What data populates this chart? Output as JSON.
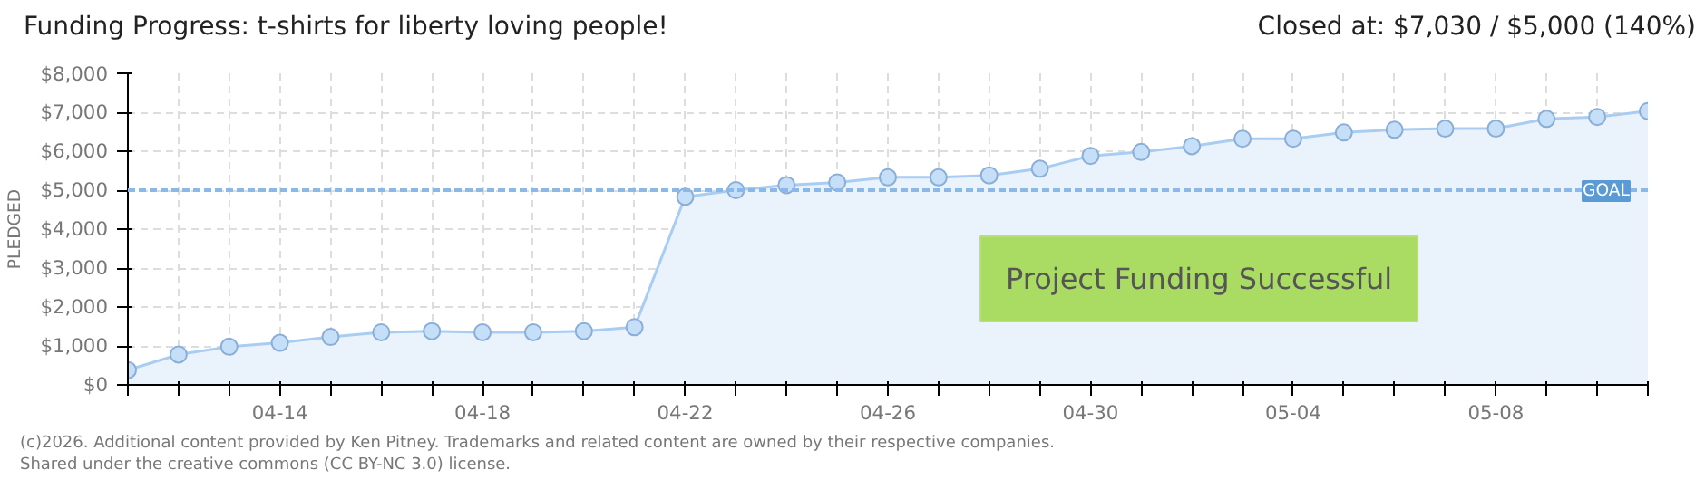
{
  "chart_data": {
    "type": "area",
    "title": "Funding Progress: t-shirts for liberty loving people!",
    "subtitle": "Closed at:  $7,030 /  $5,000 (140%)",
    "ylabel": "PLEDGED",
    "x": [
      "2026-04-11",
      "2026-04-12",
      "2026-04-13",
      "2026-04-14",
      "2026-04-15",
      "2026-04-16",
      "2026-04-17",
      "2026-04-18",
      "2026-04-19",
      "2026-04-20",
      "2026-04-21",
      "2026-04-22",
      "2026-04-23",
      "2026-04-24",
      "2026-04-25",
      "2026-04-26",
      "2026-04-27",
      "2026-04-28",
      "2026-04-29",
      "2026-04-30",
      "2026-05-01",
      "2026-05-02",
      "2026-05-03",
      "2026-05-04",
      "2026-05-05",
      "2026-05-06",
      "2026-05-07",
      "2026-05-08",
      "2026-05-09",
      "2026-05-10",
      "2026-05-11"
    ],
    "series": [
      {
        "color": "#a9cdf2",
        "values": [
          380,
          780,
          980,
          1080,
          1230,
          1350,
          1380,
          1350,
          1350,
          1380,
          1480,
          4830,
          5000,
          5130,
          5200,
          5330,
          5330,
          5380,
          5550,
          5880,
          5980,
          6130,
          6320,
          6320,
          6480,
          6550,
          6580,
          6580,
          6830,
          6880,
          7030
        ]
      }
    ],
    "xlim": [
      "2026-04-11",
      "2026-05-11"
    ],
    "xticks": [
      {
        "value": "2026-04-11",
        "label": null
      },
      {
        "value": "2026-04-12",
        "label": null
      },
      {
        "value": "2026-04-13",
        "label": null
      },
      {
        "value": "2026-04-14",
        "label": "04-14"
      },
      {
        "value": "2026-04-15",
        "label": null
      },
      {
        "value": "2026-04-16",
        "label": null
      },
      {
        "value": "2026-04-17",
        "label": null
      },
      {
        "value": "2026-04-18",
        "label": "04-18"
      },
      {
        "value": "2026-04-19",
        "label": null
      },
      {
        "value": "2026-04-20",
        "label": null
      },
      {
        "value": "2026-04-21",
        "label": null
      },
      {
        "value": "2026-04-22",
        "label": "04-22"
      },
      {
        "value": "2026-04-23",
        "label": null
      },
      {
        "value": "2026-04-24",
        "label": null
      },
      {
        "value": "2026-04-25",
        "label": null
      },
      {
        "value": "2026-04-26",
        "label": "04-26"
      },
      {
        "value": "2026-04-27",
        "label": null
      },
      {
        "value": "2026-04-28",
        "label": null
      },
      {
        "value": "2026-04-29",
        "label": null
      },
      {
        "value": "2026-04-30",
        "label": "04-30"
      },
      {
        "value": "2026-05-01",
        "label": null
      },
      {
        "value": "2026-05-02",
        "label": null
      },
      {
        "value": "2026-05-03",
        "label": null
      },
      {
        "value": "2026-05-04",
        "label": "05-04"
      },
      {
        "value": "2026-05-05",
        "label": null
      },
      {
        "value": "2026-05-06",
        "label": null
      },
      {
        "value": "2026-05-07",
        "label": null
      },
      {
        "value": "2026-05-08",
        "label": "05-08"
      },
      {
        "value": "2026-05-09",
        "label": null
      },
      {
        "value": "2026-05-10",
        "label": null
      },
      {
        "value": "2026-05-11",
        "label": null
      }
    ],
    "ylim": [
      0,
      8000
    ],
    "yticks": [
      {
        "value": 0,
        "label": "$0"
      },
      {
        "value": 1000,
        "label": "$1,000"
      },
      {
        "value": 2000,
        "label": "$2,000"
      },
      {
        "value": 3000,
        "label": "$3,000"
      },
      {
        "value": 4000,
        "label": "$4,000"
      },
      {
        "value": 5000,
        "label": "$5,000"
      },
      {
        "value": 6000,
        "label": "$6,000"
      },
      {
        "value": 7000,
        "label": "$7,000"
      },
      {
        "value": 8000,
        "label": "$8,000"
      }
    ],
    "ref_lines": [
      {
        "axis": "y",
        "value": 5000,
        "label": "GOAL",
        "color": "#8ab8e8",
        "line_style": "dotted"
      }
    ],
    "grid": true,
    "marker": "circle",
    "annotations": [
      "Project Funding Successful",
      "(c)2026. Additional content provided by Ken Pitney. Trademarks and related content are owned by their respective companies.",
      "Shared under the creative commons (CC BY-NC 3.0) license."
    ]
  }
}
